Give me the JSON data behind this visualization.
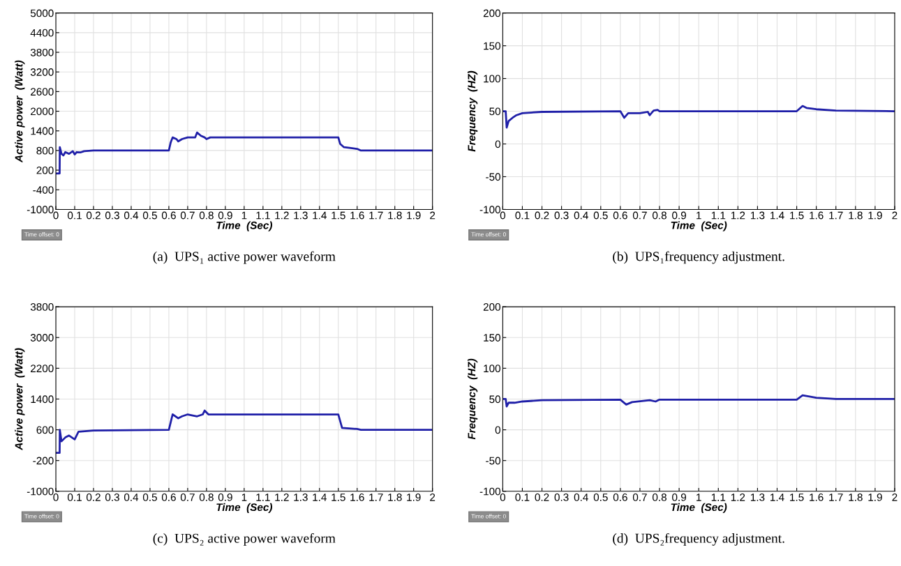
{
  "chart_data": [
    {
      "type": "line",
      "xlabel": "Time  (Sec)",
      "ylabel": "Active power  (Watt)",
      "annotations": [
        "(a)  UPS₁ active power waveform",
        "Time offset: 0"
      ],
      "xlim": [
        0,
        2
      ],
      "xticks": [
        0,
        0.1,
        0.2,
        0.3,
        0.4,
        0.5,
        0.6,
        0.7,
        0.8,
        0.9,
        1,
        1.1,
        1.2,
        1.3,
        1.4,
        1.5,
        1.6,
        1.7,
        1.8,
        1.9,
        2
      ],
      "ylim": [
        -1000,
        5000
      ],
      "yticks": [
        -1000,
        -400,
        200,
        800,
        1400,
        2000,
        2600,
        3200,
        3800,
        4400,
        5000
      ],
      "grid": true,
      "series": [
        {
          "color": "#1f1fa8",
          "x": [
            0,
            0.02,
            0.021,
            0.03,
            0.04,
            0.05,
            0.07,
            0.09,
            0.1,
            0.11,
            0.13,
            0.15,
            0.2,
            0.6,
            0.61,
            0.62,
            0.64,
            0.65,
            0.67,
            0.7,
            0.74,
            0.75,
            0.77,
            0.79,
            0.8,
            0.82,
            1.5,
            1.51,
            1.53,
            1.56,
            1.6,
            1.62,
            2
          ],
          "values": [
            100,
            100,
            900,
            700,
            650,
            750,
            700,
            780,
            680,
            750,
            740,
            780,
            800,
            800,
            1050,
            1200,
            1150,
            1080,
            1150,
            1200,
            1200,
            1350,
            1250,
            1200,
            1150,
            1200,
            1200,
            1000,
            900,
            880,
            850,
            800,
            800
          ]
        }
      ]
    },
    {
      "type": "line",
      "xlabel": "Time  (Sec)",
      "ylabel": "Frequency  (HZ)",
      "annotations": [
        "(b)  UPS₁frequency adjustment.",
        "Time offset: 0"
      ],
      "xlim": [
        0,
        2
      ],
      "xticks": [
        0,
        0.1,
        0.2,
        0.3,
        0.4,
        0.5,
        0.6,
        0.7,
        0.8,
        0.9,
        1,
        1.1,
        1.2,
        1.3,
        1.4,
        1.5,
        1.6,
        1.7,
        1.8,
        1.9,
        2
      ],
      "ylim": [
        -100,
        200
      ],
      "yticks": [
        -100,
        -50,
        0,
        50,
        100,
        150,
        200
      ],
      "grid": true,
      "series": [
        {
          "color": "#1f1fa8",
          "x": [
            0,
            0.015,
            0.02,
            0.03,
            0.05,
            0.07,
            0.1,
            0.2,
            0.6,
            0.62,
            0.64,
            0.7,
            0.74,
            0.75,
            0.77,
            0.79,
            0.8,
            1.5,
            1.53,
            1.55,
            1.6,
            1.7,
            2
          ],
          "values": [
            50,
            50,
            25,
            35,
            40,
            44,
            47,
            49,
            50,
            40,
            47,
            47,
            49,
            44,
            51,
            52,
            50,
            50,
            58,
            55,
            53,
            51,
            50
          ]
        }
      ]
    },
    {
      "type": "line",
      "xlabel": "Time  (Sec)",
      "ylabel": "Active power  (Watt)",
      "annotations": [
        "(c)  UPS₂ active power waveform",
        "Time offset: 0"
      ],
      "xlim": [
        0,
        2
      ],
      "xticks": [
        0,
        0.1,
        0.2,
        0.3,
        0.4,
        0.5,
        0.6,
        0.7,
        0.8,
        0.9,
        1,
        1.1,
        1.2,
        1.3,
        1.4,
        1.5,
        1.6,
        1.7,
        1.8,
        1.9,
        2
      ],
      "ylim": [
        -1000,
        3800
      ],
      "yticks": [
        -1000,
        -200,
        600,
        1400,
        2200,
        3000,
        3800
      ],
      "grid": true,
      "series": [
        {
          "color": "#1f1fa8",
          "x": [
            0,
            0.02,
            0.021,
            0.03,
            0.05,
            0.07,
            0.1,
            0.12,
            0.2,
            0.6,
            0.61,
            0.62,
            0.65,
            0.67,
            0.7,
            0.75,
            0.78,
            0.79,
            0.81,
            1.5,
            1.52,
            1.6,
            1.62,
            2
          ],
          "values": [
            0,
            0,
            600,
            300,
            400,
            450,
            350,
            550,
            580,
            600,
            800,
            1000,
            900,
            950,
            1000,
            950,
            1000,
            1100,
            1000,
            1000,
            650,
            620,
            600,
            600
          ]
        }
      ]
    },
    {
      "type": "line",
      "xlabel": "Time  (Sec)",
      "ylabel": "Frequency  (HZ)",
      "annotations": [
        "(d)  UPS₂frequency adjustment.",
        "Time offset: 0"
      ],
      "xlim": [
        0,
        2
      ],
      "xticks": [
        0,
        0.1,
        0.2,
        0.3,
        0.4,
        0.5,
        0.6,
        0.7,
        0.8,
        0.9,
        1,
        1.1,
        1.2,
        1.3,
        1.4,
        1.5,
        1.6,
        1.7,
        1.8,
        1.9,
        2
      ],
      "ylim": [
        -100,
        200
      ],
      "yticks": [
        -100,
        -50,
        0,
        50,
        100,
        150,
        200
      ],
      "grid": true,
      "series": [
        {
          "color": "#1f1fa8",
          "x": [
            0,
            0.015,
            0.02,
            0.03,
            0.06,
            0.1,
            0.2,
            0.6,
            0.63,
            0.66,
            0.75,
            0.78,
            0.8,
            1.5,
            1.53,
            1.6,
            1.7,
            2
          ],
          "values": [
            50,
            50,
            38,
            44,
            44,
            46,
            48,
            49,
            41,
            45,
            48,
            46,
            49,
            49,
            56,
            52,
            50,
            50
          ]
        }
      ]
    }
  ]
}
